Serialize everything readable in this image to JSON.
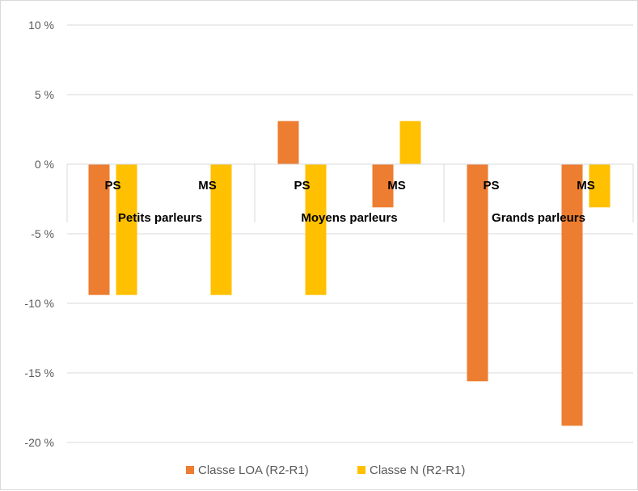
{
  "chart_data": {
    "type": "bar",
    "groups": [
      "Petits parleurs",
      "Moyens parleurs",
      "Grands parleurs"
    ],
    "subcategories": [
      "PS",
      "MS",
      "PS",
      "MS",
      "PS",
      "MS"
    ],
    "series": [
      {
        "name": "Classe LOA (R2-R1)",
        "color": "#ED7D31",
        "values": [
          -9.4,
          null,
          3.1,
          -3.1,
          -15.6,
          -18.8
        ]
      },
      {
        "name": "Classe N (R2-R1)",
        "color": "#FFC000",
        "values": [
          -9.4,
          -9.4,
          -9.4,
          3.1,
          null,
          -3.1
        ]
      }
    ],
    "yticks": [
      "10 %",
      "5 %",
      "0 %",
      "-5 %",
      "-10 %",
      "-15 %",
      "-20 %"
    ],
    "ytick_values": [
      10,
      5,
      0,
      -5,
      -10,
      -15,
      -20
    ],
    "ylim": [
      -20,
      10
    ],
    "grid": true,
    "legend_position": "bottom"
  }
}
